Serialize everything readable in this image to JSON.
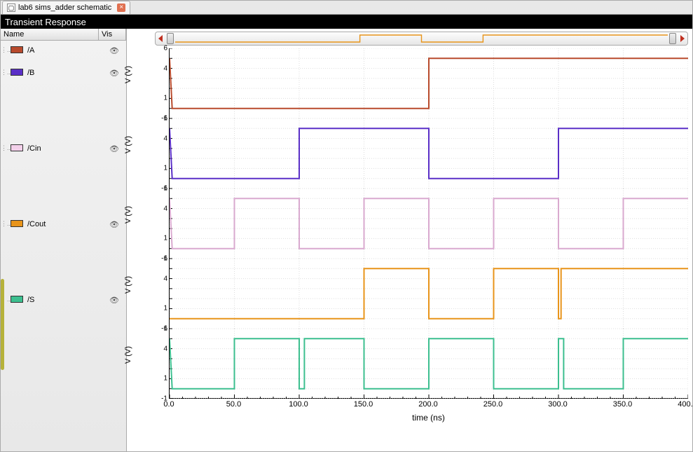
{
  "tab": {
    "title": "lab6 sims_adder schematic"
  },
  "title": "Transient Response",
  "legend": {
    "header_name": "Name",
    "header_vis": "Vis"
  },
  "plot_bg": "#ffffff",
  "grid_color": "#dddddd",
  "x": {
    "min": 0,
    "max": 400,
    "label": "time (ns)",
    "ticks": [
      0,
      50,
      100,
      150,
      200,
      250,
      300,
      350,
      400
    ],
    "tick_labels": [
      "0.0",
      "50.0",
      "100.0",
      "150.0",
      "200.0",
      "250.0",
      "300.0",
      "350.0",
      "400.0"
    ]
  },
  "y": {
    "min": -1,
    "max": 6,
    "label": "V (V)",
    "tick_vals": [
      -1,
      1,
      4,
      6
    ],
    "tick_labels": [
      "-1",
      "1",
      "4",
      "6"
    ]
  },
  "signals": [
    {
      "name": "/A",
      "color": "#b84a2c",
      "swatch": "#b84a2c",
      "pts": [
        [
          0,
          5
        ],
        [
          2,
          0
        ],
        [
          200,
          0
        ],
        [
          200,
          5
        ],
        [
          400,
          5
        ]
      ]
    },
    {
      "name": "/B",
      "color": "#5a2fc7",
      "swatch": "#5a2fc7",
      "pts": [
        [
          0,
          5
        ],
        [
          2,
          0
        ],
        [
          100,
          0
        ],
        [
          100,
          5
        ],
        [
          200,
          5
        ],
        [
          200,
          0
        ],
        [
          300,
          0
        ],
        [
          300,
          5
        ],
        [
          400,
          5
        ]
      ]
    },
    {
      "name": "/Cin",
      "color": "#d9a9cf",
      "swatch": "#f3d0ea",
      "pts": [
        [
          0,
          5
        ],
        [
          2,
          0
        ],
        [
          50,
          0
        ],
        [
          50,
          5
        ],
        [
          100,
          5
        ],
        [
          100,
          0
        ],
        [
          150,
          0
        ],
        [
          150,
          5
        ],
        [
          200,
          5
        ],
        [
          200,
          0
        ],
        [
          250,
          0
        ],
        [
          250,
          5
        ],
        [
          300,
          5
        ],
        [
          300,
          0
        ],
        [
          350,
          0
        ],
        [
          350,
          5
        ],
        [
          400,
          5
        ]
      ]
    },
    {
      "name": "/Cout",
      "color": "#e8941a",
      "swatch": "#e8941a",
      "pts": [
        [
          0,
          0
        ],
        [
          150,
          0
        ],
        [
          150,
          5
        ],
        [
          200,
          5
        ],
        [
          200,
          0
        ],
        [
          204,
          0
        ],
        [
          204,
          0
        ],
        [
          250,
          0
        ],
        [
          250,
          5
        ],
        [
          300,
          5
        ],
        [
          300,
          0
        ],
        [
          302,
          0
        ],
        [
          302,
          5
        ],
        [
          304,
          5
        ],
        [
          304,
          5
        ],
        [
          400,
          5
        ]
      ]
    },
    {
      "name": "/S",
      "color": "#3cbf8f",
      "swatch": "#3cbf8f",
      "pts": [
        [
          0,
          5
        ],
        [
          2,
          0
        ],
        [
          50,
          0
        ],
        [
          50,
          5
        ],
        [
          100,
          5
        ],
        [
          100,
          0
        ],
        [
          104,
          0
        ],
        [
          104,
          5
        ],
        [
          150,
          5
        ],
        [
          150,
          0
        ],
        [
          200,
          0
        ],
        [
          200,
          5
        ],
        [
          250,
          5
        ],
        [
          250,
          0
        ],
        [
          300,
          0
        ],
        [
          300,
          5
        ],
        [
          304,
          5
        ],
        [
          304,
          0
        ],
        [
          350,
          0
        ],
        [
          350,
          5
        ],
        [
          400,
          5
        ]
      ]
    }
  ],
  "overview": {
    "color": "#e8941a",
    "pts": [
      [
        0,
        0
      ],
      [
        150,
        0
      ],
      [
        150,
        5
      ],
      [
        200,
        5
      ],
      [
        200,
        0
      ],
      [
        250,
        0
      ],
      [
        250,
        5
      ],
      [
        300,
        5
      ],
      [
        300,
        5
      ],
      [
        400,
        5
      ]
    ]
  }
}
